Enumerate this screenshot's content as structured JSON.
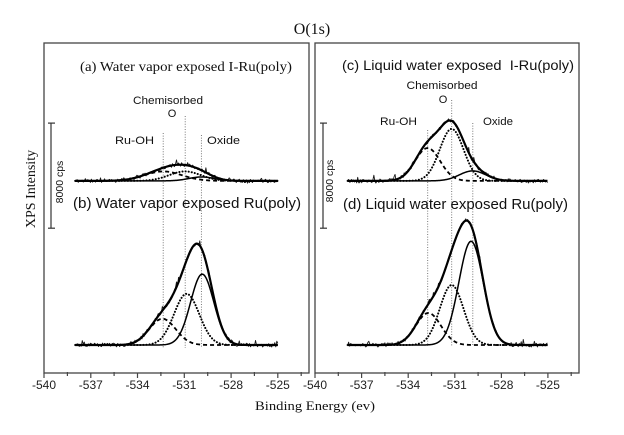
{
  "chart_data": {
    "type": "line",
    "title": "O(1s)",
    "xlabel": "Binding Energy (ev)",
    "ylabel": "XPS Intensity",
    "ylim": [
      -2130,
      23000
    ],
    "grid": false,
    "legend": "none",
    "scale_bar": {
      "label": "8000 cps",
      "value_cps": 8000
    },
    "panels": [
      {
        "id": "left",
        "xlim": [
          -540,
          -523
        ],
        "xticks": [
          -540,
          -537,
          -534,
          -531,
          -528,
          -525
        ],
        "minor_tick_step": 1.5,
        "peak_labels": {
          "chemisorbed_line1": "Chemisorbed",
          "chemisorbed_line2": "O",
          "ru_oh": "Ru-OH",
          "oxide": "Oxide"
        },
        "reference_lines": [
          {
            "key": "ru_oh",
            "energy": -532.35
          },
          {
            "key": "chem_o",
            "energy": -530.94
          },
          {
            "key": "oxide",
            "energy": -529.9
          }
        ],
        "spectra": [
          {
            "id": "a",
            "label": "(a) Water vapor exposed I-Ru(poly)",
            "offset_cps": 12500,
            "x_range": [
              -538.0,
              -525.0
            ],
            "noise_cps": 150,
            "components": [
              {
                "key": "ru_oh",
                "name": "Ru-OH",
                "center": -532.35,
                "height_cps": 720,
                "fwhm_ev": 2.8
              },
              {
                "key": "chem_o",
                "name": "Chemisorbed O",
                "center": -530.95,
                "height_cps": 720,
                "fwhm_ev": 2.4
              },
              {
                "key": "oxide",
                "name": "Oxide",
                "center": -529.9,
                "height_cps": 300,
                "fwhm_ev": 1.9
              }
            ]
          },
          {
            "id": "b",
            "label": "(b) Water vapor exposed Ru(poly)",
            "offset_cps": 0,
            "x_range": [
              -538.0,
              -525.0
            ],
            "noise_cps": 170,
            "components": [
              {
                "key": "ru_oh",
                "name": "Ru-OH",
                "center": -532.4,
                "height_cps": 2000,
                "fwhm_ev": 2.0
              },
              {
                "key": "chem_o",
                "name": "Chemisorbed O",
                "center": -530.85,
                "height_cps": 3900,
                "fwhm_ev": 1.9
              },
              {
                "key": "oxide",
                "name": "Oxide",
                "center": -529.85,
                "height_cps": 5400,
                "fwhm_ev": 1.75
              }
            ]
          }
        ]
      },
      {
        "id": "right",
        "xlim": [
          -540,
          -523
        ],
        "xticks": [
          -540,
          -537,
          -534,
          -531,
          -528,
          -525
        ],
        "minor_tick_step": 1.5,
        "peak_labels": {
          "chemisorbed_line1": "Chemisorbed",
          "chemisorbed_line2": "O",
          "ru_oh": "Ru-OH",
          "oxide": "Oxide"
        },
        "reference_lines": [
          {
            "key": "ru_oh",
            "energy": -532.74
          },
          {
            "key": "chem_o",
            "energy": -531.2
          },
          {
            "key": "oxide",
            "energy": -529.84
          }
        ],
        "spectra": [
          {
            "id": "c",
            "label": "(c) Liquid water exposed  I-Ru(poly)",
            "offset_cps": 12500,
            "x_range": [
              -537.9,
              -525.0
            ],
            "noise_cps": 170,
            "components": [
              {
                "key": "ru_oh",
                "name": "Ru-OH",
                "center": -532.75,
                "height_cps": 2500,
                "fwhm_ev": 1.9
              },
              {
                "key": "chem_o",
                "name": "Chemisorbed O",
                "center": -531.2,
                "height_cps": 3960,
                "fwhm_ev": 1.8
              },
              {
                "key": "oxide",
                "name": "Oxide",
                "center": -529.85,
                "height_cps": 760,
                "fwhm_ev": 2.0
              }
            ]
          },
          {
            "id": "d",
            "label": "(d) Liquid water exposed Ru(poly)",
            "offset_cps": 0,
            "x_range": [
              -537.9,
              -525.0
            ],
            "noise_cps": 170,
            "components": [
              {
                "key": "ru_oh",
                "name": "Ru-OH",
                "center": -532.7,
                "height_cps": 2440,
                "fwhm_ev": 1.9
              },
              {
                "key": "chem_o",
                "name": "Chemisorbed O",
                "center": -531.2,
                "height_cps": 4570,
                "fwhm_ev": 1.8
              },
              {
                "key": "oxide",
                "name": "Oxide",
                "center": -529.95,
                "height_cps": 7900,
                "fwhm_ev": 1.85
              }
            ]
          }
        ]
      }
    ]
  }
}
